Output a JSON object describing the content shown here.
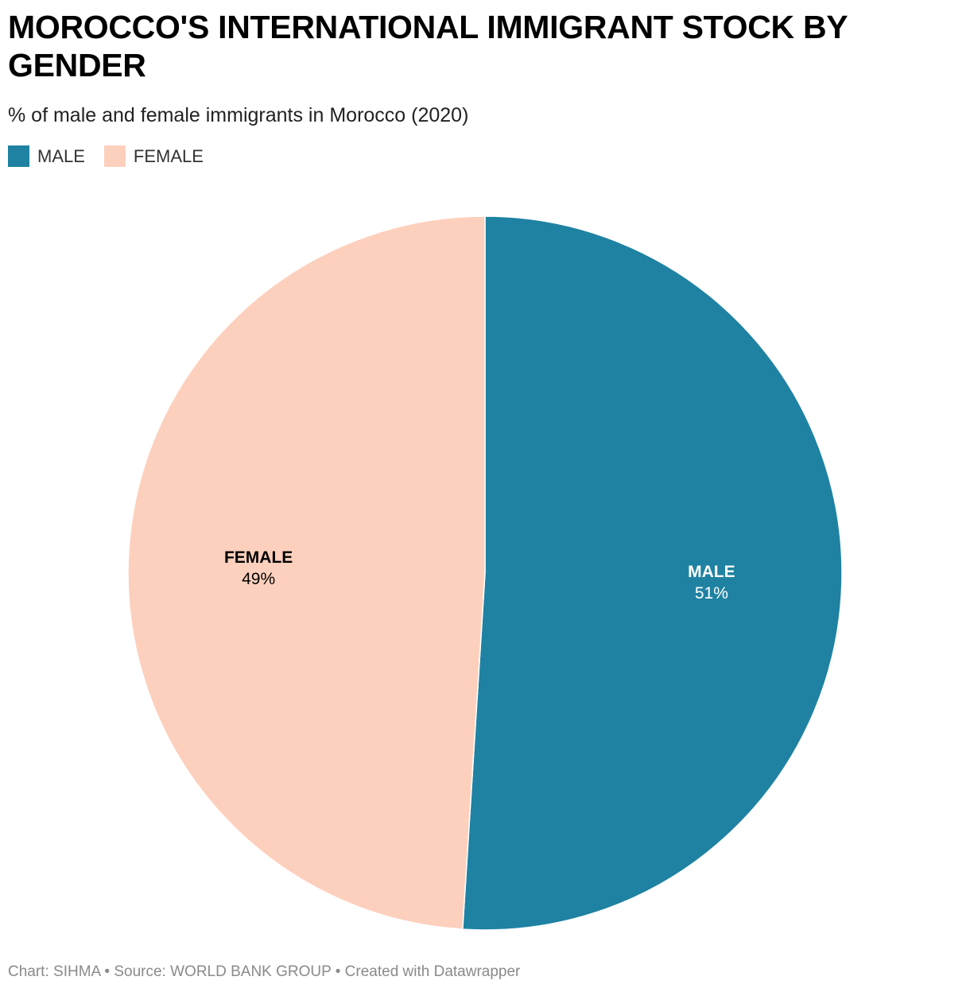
{
  "title": "MOROCCO'S INTERNATIONAL IMMIGRANT STOCK BY GENDER",
  "subtitle": "% of male and female immigrants in Morocco (2020)",
  "legend": [
    {
      "label": "MALE",
      "color": "#1f82a2"
    },
    {
      "label": "FEMALE",
      "color": "#fdd0bd"
    }
  ],
  "chart_data": {
    "type": "pie",
    "title": "MOROCCO'S INTERNATIONAL IMMIGRANT STOCK BY GENDER",
    "subtitle": "% of male and female immigrants in Morocco (2020)",
    "legend_position": "top-left",
    "slices": [
      {
        "label": "MALE",
        "value": 51,
        "value_label": "51%",
        "color": "#1f82a2",
        "label_color": "#ffffff"
      },
      {
        "label": "FEMALE",
        "value": 49,
        "value_label": "49%",
        "color": "#fdd0bd",
        "label_color": "#000000"
      }
    ]
  },
  "footer": "Chart: SIHMA • Source: WORLD BANK GROUP • Created with Datawrapper"
}
